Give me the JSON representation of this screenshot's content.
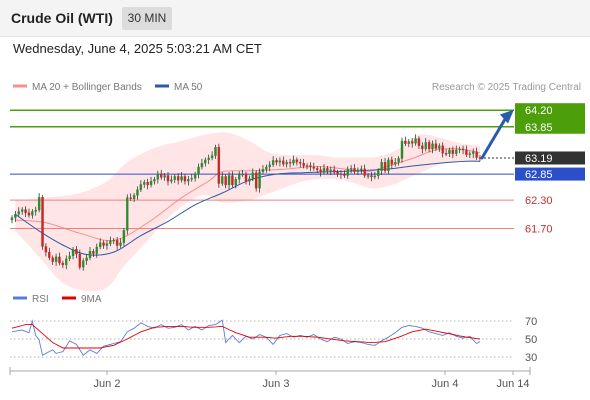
{
  "header": {
    "title": "Crude Oil (WTI)",
    "interval": "30 MIN",
    "datetime": "Wednesday, June 4, 2025 5:03:21 AM CET"
  },
  "colors": {
    "bollinger": "#ff8c8c",
    "bollinger_fill": "#ffdede",
    "ma50": "#2a5aa8",
    "resistance": "#4c9e0a",
    "support": "#f08080",
    "pivot": "#2b4fc9",
    "last": "#333333",
    "bull": "#2e8b2e",
    "bear": "#c62828",
    "rsi": "#5b7bd8",
    "rsi_ma": "#e00000"
  },
  "chart_data": [
    {
      "type": "candlestick",
      "legend": [
        {
          "name": "MA 20 + Bollinger Bands",
          "color": "#ff8c8c"
        },
        {
          "name": "MA 50",
          "color": "#2a5aa8"
        }
      ],
      "legend_position": "top-left",
      "attribution": "Research © 2025 Trading Central",
      "ylim": [
        60.4,
        64.5
      ],
      "x_ticks": [
        "Jun 2",
        "Jun 3",
        "Jun 4",
        "Jun 14"
      ],
      "grid": false,
      "levels": [
        {
          "value": 64.2,
          "label": "64.20",
          "kind": "resistance"
        },
        {
          "value": 63.85,
          "label": "63.85",
          "kind": "resistance"
        },
        {
          "value": 63.19,
          "label": "63.19",
          "kind": "last"
        },
        {
          "value": 62.85,
          "label": "62.85",
          "kind": "pivot"
        },
        {
          "value": 62.3,
          "label": "62.30",
          "kind": "support"
        },
        {
          "value": 61.7,
          "label": "61.70",
          "kind": "support"
        }
      ],
      "target_arrow": {
        "from": 63.19,
        "to": 64.15
      },
      "close": [
        61.93,
        62.0,
        62.06,
        62.1,
        62.03,
        61.98,
        62.06,
        62.09,
        62.36,
        61.32,
        61.2,
        61.08,
        61.0,
        61.1,
        60.97,
        60.93,
        61.06,
        61.12,
        61.26,
        61.16,
        60.88,
        61.02,
        61.08,
        61.22,
        61.17,
        61.31,
        61.4,
        61.34,
        61.38,
        61.44,
        61.45,
        61.34,
        61.4,
        61.66,
        62.35,
        62.33,
        62.4,
        62.52,
        62.63,
        62.68,
        62.62,
        62.7,
        62.74,
        62.85,
        62.78,
        62.82,
        62.7,
        62.73,
        62.8,
        62.72,
        62.8,
        62.7,
        62.74,
        62.76,
        62.85,
        63.0,
        63.08,
        63.15,
        63.19,
        63.24,
        63.42,
        62.65,
        62.8,
        62.62,
        62.82,
        62.62,
        62.74,
        62.84,
        62.85,
        62.7,
        62.75,
        62.88,
        62.55,
        62.9,
        62.95,
        63.0,
        63.05,
        63.14,
        63.1,
        63.13,
        63.06,
        63.1,
        63.08,
        63.15,
        63.1,
        63.08,
        63.02,
        63.03,
        63.0,
        62.97,
        62.94,
        62.89,
        62.97,
        62.92,
        62.94,
        62.89,
        62.86,
        62.84,
        62.82,
        62.96,
        62.97,
        62.9,
        62.94,
        62.96,
        62.82,
        62.82,
        62.79,
        62.81,
        62.92,
        63.1,
        62.92,
        63.15,
        63.06,
        63.1,
        63.18,
        63.55,
        63.49,
        63.54,
        63.5,
        63.6,
        63.45,
        63.38,
        63.52,
        63.38,
        63.49,
        63.39,
        63.45,
        63.29,
        63.28,
        63.36,
        63.28,
        63.36,
        63.38,
        63.36,
        63.26,
        63.28,
        63.32,
        63.2,
        63.19
      ],
      "ma20_points": [
        [
          1,
          61.88
        ],
        [
          10,
          61.82
        ],
        [
          20,
          61.6
        ],
        [
          30,
          61.45
        ],
        [
          40,
          61.82
        ],
        [
          50,
          62.35
        ],
        [
          58,
          62.7
        ],
        [
          62,
          62.9
        ],
        [
          70,
          62.92
        ],
        [
          80,
          62.95
        ],
        [
          90,
          63.01
        ],
        [
          100,
          62.94
        ],
        [
          105,
          62.9
        ],
        [
          110,
          63.0
        ],
        [
          118,
          63.18
        ],
        [
          125,
          63.36
        ],
        [
          132,
          63.38
        ],
        [
          138,
          63.3
        ]
      ],
      "bb_upper_points": [
        [
          1,
          62.3
        ],
        [
          10,
          62.35
        ],
        [
          20,
          62.45
        ],
        [
          28,
          62.7
        ],
        [
          34,
          63.1
        ],
        [
          42,
          63.4
        ],
        [
          50,
          63.55
        ],
        [
          58,
          63.7
        ],
        [
          64,
          63.72
        ],
        [
          70,
          63.55
        ],
        [
          76,
          63.3
        ],
        [
          82,
          63.25
        ],
        [
          90,
          63.25
        ],
        [
          96,
          63.2
        ],
        [
          102,
          63.2
        ],
        [
          108,
          63.22
        ],
        [
          114,
          63.38
        ],
        [
          120,
          63.68
        ],
        [
          126,
          63.62
        ],
        [
          132,
          63.5
        ],
        [
          138,
          63.45
        ]
      ],
      "bb_lower_points": [
        [
          1,
          61.65
        ],
        [
          8,
          61.1
        ],
        [
          15,
          60.55
        ],
        [
          22,
          60.38
        ],
        [
          28,
          60.45
        ],
        [
          33,
          60.9
        ],
        [
          40,
          61.45
        ],
        [
          48,
          62.05
        ],
        [
          56,
          62.4
        ],
        [
          62,
          62.25
        ],
        [
          70,
          62.3
        ],
        [
          78,
          62.5
        ],
        [
          86,
          62.7
        ],
        [
          94,
          62.75
        ],
        [
          100,
          62.68
        ],
        [
          106,
          62.55
        ],
        [
          112,
          62.62
        ],
        [
          118,
          62.8
        ],
        [
          126,
          63.05
        ],
        [
          132,
          63.12
        ],
        [
          138,
          63.1
        ]
      ],
      "ma50_points": [
        [
          1,
          62.0
        ],
        [
          8,
          61.65
        ],
        [
          15,
          61.35
        ],
        [
          22,
          61.15
        ],
        [
          30,
          61.2
        ],
        [
          38,
          61.55
        ],
        [
          46,
          61.85
        ],
        [
          54,
          62.2
        ],
        [
          62,
          62.45
        ],
        [
          70,
          62.72
        ],
        [
          78,
          62.85
        ],
        [
          86,
          62.88
        ],
        [
          94,
          62.9
        ],
        [
          102,
          62.92
        ],
        [
          110,
          62.95
        ],
        [
          118,
          63.02
        ],
        [
          126,
          63.08
        ],
        [
          134,
          63.12
        ],
        [
          138,
          63.12
        ]
      ]
    },
    {
      "type": "line",
      "legend": [
        {
          "name": "RSI",
          "color": "#5b7bd8"
        },
        {
          "name": "9MA",
          "color": "#e00000"
        }
      ],
      "ylim": [
        20,
        80
      ],
      "y_ticks": [
        70,
        50,
        30
      ],
      "grid": true,
      "rsi_points": [
        [
          0,
          58
        ],
        [
          3,
          60
        ],
        [
          5,
          57
        ],
        [
          6,
          70
        ],
        [
          7,
          54
        ],
        [
          8,
          49
        ],
        [
          9,
          32
        ],
        [
          10,
          34
        ],
        [
          12,
          38
        ],
        [
          13,
          34
        ],
        [
          15,
          36
        ],
        [
          17,
          48
        ],
        [
          19,
          44
        ],
        [
          21,
          32
        ],
        [
          23,
          38
        ],
        [
          25,
          34
        ],
        [
          27,
          42
        ],
        [
          30,
          45
        ],
        [
          32,
          47
        ],
        [
          34,
          58
        ],
        [
          36,
          62
        ],
        [
          38,
          68
        ],
        [
          40,
          64
        ],
        [
          42,
          62
        ],
        [
          44,
          66
        ],
        [
          46,
          62
        ],
        [
          48,
          63
        ],
        [
          50,
          66
        ],
        [
          52,
          60
        ],
        [
          54,
          64
        ],
        [
          56,
          60
        ],
        [
          58,
          65
        ],
        [
          60,
          66
        ],
        [
          62,
          71
        ],
        [
          63,
          46
        ],
        [
          65,
          54
        ],
        [
          67,
          46
        ],
        [
          69,
          53
        ],
        [
          71,
          50
        ],
        [
          73,
          55
        ],
        [
          75,
          52
        ],
        [
          77,
          44
        ],
        [
          79,
          54
        ],
        [
          81,
          56
        ],
        [
          83,
          52
        ],
        [
          85,
          54
        ],
        [
          87,
          52
        ],
        [
          89,
          55
        ],
        [
          91,
          50
        ],
        [
          93,
          47
        ],
        [
          95,
          52
        ],
        [
          97,
          50
        ],
        [
          99,
          45
        ],
        [
          101,
          47
        ],
        [
          103,
          46
        ],
        [
          105,
          44
        ],
        [
          107,
          43
        ],
        [
          109,
          48
        ],
        [
          111,
          52
        ],
        [
          113,
          57
        ],
        [
          115,
          63
        ],
        [
          117,
          65
        ],
        [
          119,
          64
        ],
        [
          121,
          62
        ],
        [
          123,
          58
        ],
        [
          125,
          56
        ],
        [
          127,
          54
        ],
        [
          129,
          57
        ],
        [
          131,
          53
        ],
        [
          133,
          51
        ],
        [
          135,
          53
        ],
        [
          137,
          45
        ],
        [
          138,
          47
        ]
      ],
      "rsi_ma_points": [
        [
          0,
          62
        ],
        [
          4,
          66
        ],
        [
          6,
          66
        ],
        [
          9,
          56
        ],
        [
          12,
          46
        ],
        [
          15,
          40
        ],
        [
          18,
          40
        ],
        [
          22,
          40
        ],
        [
          26,
          40
        ],
        [
          30,
          43
        ],
        [
          34,
          50
        ],
        [
          38,
          58
        ],
        [
          42,
          63
        ],
        [
          46,
          64
        ],
        [
          50,
          64
        ],
        [
          54,
          63
        ],
        [
          58,
          63
        ],
        [
          62,
          64
        ],
        [
          66,
          57
        ],
        [
          70,
          52
        ],
        [
          74,
          52
        ],
        [
          78,
          51
        ],
        [
          82,
          53
        ],
        [
          86,
          53
        ],
        [
          90,
          52
        ],
        [
          94,
          50
        ],
        [
          98,
          48
        ],
        [
          102,
          47
        ],
        [
          106,
          46
        ],
        [
          110,
          47
        ],
        [
          114,
          52
        ],
        [
          118,
          58
        ],
        [
          122,
          61
        ],
        [
          126,
          58
        ],
        [
          130,
          55
        ],
        [
          134,
          52
        ],
        [
          138,
          50
        ]
      ]
    }
  ]
}
